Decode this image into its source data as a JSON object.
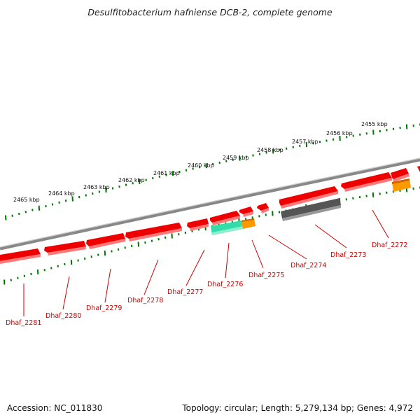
{
  "title": "Desulfitobacterium hafniense DCB-2, complete genome",
  "footer": {
    "accession": "Accession: NC_011830",
    "summary": "Topology: circular; Length: 5,279,134 bp; Genes: 4,972"
  },
  "scale_labels": [
    "2465 kbp",
    "2464 kbp",
    "2463 kbp",
    "2462 kbp",
    "2461 kbp",
    "2460 kbp",
    "2459 kbp",
    "2458 kbp",
    "2457 kbp",
    "2456 kbp",
    "2455 kbp"
  ],
  "gene_labels": [
    "Dhaf_2281",
    "Dhaf_2280",
    "Dhaf_2279",
    "Dhaf_2278",
    "Dhaf_2277",
    "Dhaf_2276",
    "Dhaf_2275",
    "Dhaf_2274",
    "Dhaf_2273",
    "Dhaf_2272"
  ],
  "colors": {
    "cds": "#ee0000",
    "cds_shadow": "#ff7777",
    "rrna": "#33ddaa",
    "trna": "#ff9900",
    "pseudo": "#555555",
    "backbone": "#888888",
    "ticks": "#007700",
    "label": "#cc0000"
  }
}
